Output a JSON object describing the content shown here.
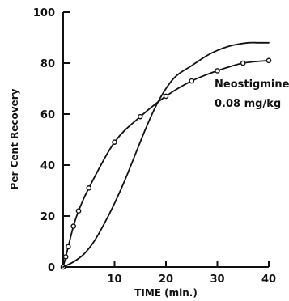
{
  "chart_data": {
    "type": "line",
    "title": "",
    "xlabel": "TIME (min.)",
    "ylabel": "Per Cent Recovery",
    "xlim": [
      0,
      40
    ],
    "ylim": [
      0,
      100
    ],
    "x_ticks": [
      10,
      20,
      30,
      40
    ],
    "y_ticks": [
      0,
      20,
      40,
      60,
      80,
      100
    ],
    "grid": false,
    "annotation": {
      "line1": "Neostigmine",
      "line2": "0.08 mg/kg"
    },
    "series": [
      {
        "marker": "open-circle",
        "x": [
          0,
          0.5,
          1,
          2,
          3,
          5,
          10,
          15,
          20,
          25,
          30,
          35,
          40
        ],
        "y": [
          0,
          4,
          8,
          16,
          22,
          31,
          49,
          59,
          67,
          73,
          77,
          80,
          81
        ]
      },
      {
        "marker": "none",
        "x": [
          0,
          2,
          4,
          6,
          8,
          10,
          12,
          14,
          16,
          18,
          20,
          22,
          25,
          28,
          30,
          33,
          36,
          38,
          40
        ],
        "y": [
          0,
          2,
          5,
          10,
          17,
          25,
          34,
          44,
          54,
          63,
          70,
          75,
          79,
          83,
          85,
          87,
          88,
          88,
          88
        ]
      }
    ]
  }
}
